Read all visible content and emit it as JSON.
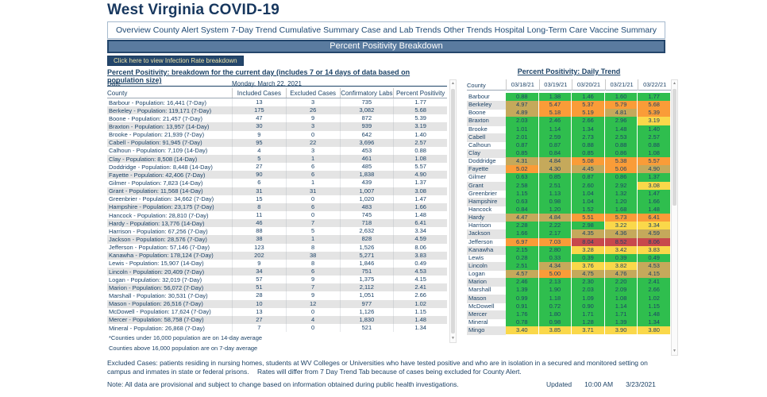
{
  "title": "West Virginia COVID-19",
  "tabs": [
    "Overview",
    "County Alert System",
    "7-Day Trend",
    "Cumulative Summary",
    "Case and Lab Trends",
    "Other Trends",
    "Hospital",
    "Long-Term Care",
    "Vaccine Summary"
  ],
  "banner": "Percent Positivity Breakdown",
  "infection_rate_button": "Click here to view Infection Rate breakdown",
  "icons": {
    "scroll_up": "▲",
    "scroll_down": "▼"
  },
  "breakdown": {
    "subtitle": "Percent Positivity: breakdown for the current day (includes 7 or 14 days of data based on population size)",
    "date_label": "Date",
    "county_label": "County",
    "date_value": "Monday, March 22, 2021",
    "columns": [
      "Included Cases",
      "Excluded Cases",
      "Confirmatory Labs",
      "Percent Positivity"
    ],
    "rows": [
      {
        "county": "Barbour - Population: 16,441 (7-Day)",
        "included": "13",
        "excluded": "3",
        "labs": "735",
        "positivity": "1.77"
      },
      {
        "county": "Berkeley - Population: 119,171 (7-Day)",
        "included": "175",
        "excluded": "26",
        "labs": "3,082",
        "positivity": "5.68"
      },
      {
        "county": "Boone - Population: 21,457 (7-Day)",
        "included": "47",
        "excluded": "9",
        "labs": "872",
        "positivity": "5.39"
      },
      {
        "county": "Braxton - Population: 13,957 (14-Day)",
        "included": "30",
        "excluded": "3",
        "labs": "939",
        "positivity": "3.19"
      },
      {
        "county": "Brooke - Population: 21,939 (7-Day)",
        "included": "9",
        "excluded": "0",
        "labs": "642",
        "positivity": "1.40"
      },
      {
        "county": "Cabell - Population: 91,945 (7-Day)",
        "included": "95",
        "excluded": "22",
        "labs": "3,696",
        "positivity": "2.57"
      },
      {
        "county": "Calhoun - Population: 7,109 (14-Day)",
        "included": "4",
        "excluded": "3",
        "labs": "453",
        "positivity": "0.88"
      },
      {
        "county": "Clay - Population: 8,508 (14-Day)",
        "included": "5",
        "excluded": "1",
        "labs": "461",
        "positivity": "1.08"
      },
      {
        "county": "Doddridge - Population: 8,448 (14-Day)",
        "included": "27",
        "excluded": "6",
        "labs": "485",
        "positivity": "5.57"
      },
      {
        "county": "Fayette - Population: 42,406 (7-Day)",
        "included": "90",
        "excluded": "6",
        "labs": "1,838",
        "positivity": "4.90"
      },
      {
        "county": "Gilmer - Population: 7,823 (14-Day)",
        "included": "6",
        "excluded": "1",
        "labs": "439",
        "positivity": "1.37"
      },
      {
        "county": "Grant - Population: 11,568 (14-Day)",
        "included": "31",
        "excluded": "31",
        "labs": "1,007",
        "positivity": "3.08"
      },
      {
        "county": "Greenbrier - Population: 34,662 (7-Day)",
        "included": "15",
        "excluded": "0",
        "labs": "1,020",
        "positivity": "1.47"
      },
      {
        "county": "Hampshire - Population: 23,175 (7-Day)",
        "included": "8",
        "excluded": "6",
        "labs": "483",
        "positivity": "1.66"
      },
      {
        "county": "Hancock - Population: 28,810 (7-Day)",
        "included": "11",
        "excluded": "0",
        "labs": "745",
        "positivity": "1.48"
      },
      {
        "county": "Hardy - Population: 13,776 (14-Day)",
        "included": "46",
        "excluded": "7",
        "labs": "718",
        "positivity": "6.41"
      },
      {
        "county": "Harrison - Population: 67,256 (7-Day)",
        "included": "88",
        "excluded": "5",
        "labs": "2,632",
        "positivity": "3.34"
      },
      {
        "county": "Jackson - Population: 28,576 (7-Day)",
        "included": "38",
        "excluded": "1",
        "labs": "828",
        "positivity": "4.59"
      },
      {
        "county": "Jefferson - Population: 57,146 (7-Day)",
        "included": "123",
        "excluded": "8",
        "labs": "1,526",
        "positivity": "8.06"
      },
      {
        "county": "Kanawha - Population: 178,124 (7-Day)",
        "included": "202",
        "excluded": "38",
        "labs": "5,271",
        "positivity": "3.83"
      },
      {
        "county": "Lewis - Population: 15,907 (14-Day)",
        "included": "9",
        "excluded": "8",
        "labs": "1,846",
        "positivity": "0.49"
      },
      {
        "county": "Lincoln - Population: 20,409 (7-Day)",
        "included": "34",
        "excluded": "6",
        "labs": "751",
        "positivity": "4.53"
      },
      {
        "county": "Logan - Population: 32,019 (7-Day)",
        "included": "57",
        "excluded": "9",
        "labs": "1,375",
        "positivity": "4.15"
      },
      {
        "county": "Marion - Population: 56,072 (7-Day)",
        "included": "51",
        "excluded": "7",
        "labs": "2,112",
        "positivity": "2.41"
      },
      {
        "county": "Marshall - Population: 30,531 (7-Day)",
        "included": "28",
        "excluded": "9",
        "labs": "1,051",
        "positivity": "2.66"
      },
      {
        "county": "Mason - Population: 26,516 (7-Day)",
        "included": "10",
        "excluded": "12",
        "labs": "977",
        "positivity": "1.02"
      },
      {
        "county": "McDowell - Population: 17,624 (7-Day)",
        "included": "13",
        "excluded": "0",
        "labs": "1,126",
        "positivity": "1.15"
      },
      {
        "county": "Mercer - Population: 58,758 (7-Day)",
        "included": "27",
        "excluded": "4",
        "labs": "1,830",
        "positivity": "1.48"
      },
      {
        "county": "Mineral - Population: 26,868 (7-Day)",
        "included": "7",
        "excluded": "0",
        "labs": "521",
        "positivity": "1.34"
      }
    ],
    "footnotes": [
      "*Counties under 16,000 population are on 14-day average",
      "Counties above 16,000 population are on 7-day average"
    ]
  },
  "daily_trend": {
    "title": "Percent Positivity: Daily Trend",
    "county_label": "County",
    "dates": [
      "03/18/21",
      "03/19/21",
      "03/20/21",
      "03/21/21",
      "03/22/21"
    ],
    "palette": {
      "green": "#2FBE4E",
      "yellow": "#FAD84A",
      "tan": "#C5A95B",
      "orange": "#FA9C38",
      "red": "#C8494C"
    },
    "thresholds": {
      "yellow": 3.0,
      "tan": 4.0,
      "orange": 5.0,
      "red": 8.0
    },
    "rows": [
      {
        "county": "Barbour",
        "values": [
          "0.88",
          "1.38",
          "1.46",
          "1.60",
          "1.77"
        ]
      },
      {
        "county": "Berkeley",
        "values": [
          "4.97",
          "5.47",
          "5.37",
          "5.79",
          "5.68"
        ]
      },
      {
        "county": "Boone",
        "values": [
          "4.89",
          "5.18",
          "5.19",
          "4.81",
          "5.39"
        ]
      },
      {
        "county": "Braxton",
        "values": [
          "2.03",
          "2.46",
          "2.66",
          "2.96",
          "3.19"
        ]
      },
      {
        "county": "Brooke",
        "values": [
          "1.01",
          "1.14",
          "1.34",
          "1.48",
          "1.40"
        ]
      },
      {
        "county": "Cabell",
        "values": [
          "2.01",
          "2.59",
          "2.73",
          "2.53",
          "2.57"
        ]
      },
      {
        "county": "Calhoun",
        "values": [
          "0.87",
          "0.87",
          "0.88",
          "0.88",
          "0.88"
        ]
      },
      {
        "county": "Clay",
        "values": [
          "0.85",
          "0.84",
          "0.85",
          "0.86",
          "1.08"
        ]
      },
      {
        "county": "Doddridge",
        "values": [
          "4.31",
          "4.84",
          "5.08",
          "5.38",
          "5.57"
        ]
      },
      {
        "county": "Fayette",
        "values": [
          "5.02",
          "4.30",
          "4.45",
          "5.06",
          "4.90"
        ]
      },
      {
        "county": "Gilmer",
        "values": [
          "0.63",
          "0.85",
          "0.87",
          "0.86",
          "1.37"
        ]
      },
      {
        "county": "Grant",
        "values": [
          "2.58",
          "2.51",
          "2.60",
          "2.92",
          "3.08"
        ]
      },
      {
        "county": "Greenbrier",
        "values": [
          "1.15",
          "1.13",
          "1.04",
          "1.32",
          "1.47"
        ]
      },
      {
        "county": "Hampshire",
        "values": [
          "0.63",
          "0.98",
          "1.04",
          "1.20",
          "1.66"
        ]
      },
      {
        "county": "Hancock",
        "values": [
          "0.84",
          "1.20",
          "1.52",
          "1.68",
          "1.48"
        ]
      },
      {
        "county": "Hardy",
        "values": [
          "4.47",
          "4.84",
          "5.51",
          "5.73",
          "6.41"
        ]
      },
      {
        "county": "Harrison",
        "values": [
          "2.28",
          "2.22",
          "2.98",
          "3.22",
          "3.34"
        ]
      },
      {
        "county": "Jackson",
        "values": [
          "1.66",
          "2.17",
          "4.35",
          "4.36",
          "4.59"
        ]
      },
      {
        "county": "Jefferson",
        "values": [
          "6.97",
          "7.03",
          "8.04",
          "8.52",
          "8.06"
        ]
      },
      {
        "county": "Kanawha",
        "values": [
          "2.15",
          "2.80",
          "3.28",
          "3.42",
          "3.83"
        ]
      },
      {
        "county": "Lewis",
        "values": [
          "0.28",
          "0.33",
          "0.39",
          "0.39",
          "0.49"
        ]
      },
      {
        "county": "Lincoln",
        "values": [
          "2.51",
          "4.34",
          "3.76",
          "3.82",
          "4.53"
        ]
      },
      {
        "county": "Logan",
        "values": [
          "4.57",
          "5.00",
          "4.75",
          "4.76",
          "4.15"
        ]
      },
      {
        "county": "Marion",
        "values": [
          "2.46",
          "2.13",
          "2.30",
          "2.20",
          "2.41"
        ]
      },
      {
        "county": "Marshall",
        "values": [
          "1.39",
          "1.90",
          "2.03",
          "2.09",
          "2.66"
        ]
      },
      {
        "county": "Mason",
        "values": [
          "0.99",
          "1.18",
          "1.09",
          "1.08",
          "1.02"
        ]
      },
      {
        "county": "McDowell",
        "values": [
          "0.91",
          "0.72",
          "0.90",
          "1.14",
          "1.15"
        ]
      },
      {
        "county": "Mercer",
        "values": [
          "1.76",
          "1.80",
          "1.71",
          "1.71",
          "1.48"
        ]
      },
      {
        "county": "Mineral",
        "values": [
          "0.78",
          "0.98",
          "1.28",
          "1.39",
          "1.34"
        ]
      },
      {
        "county": "Mingo",
        "values": [
          "3.40",
          "3.85",
          "3.71",
          "3.90",
          "3.80"
        ]
      }
    ]
  },
  "notes": {
    "excluded": "Excluded Cases: patients residing in nursing homes, students at WV Colleges or Universities who have tested positive and who are in isolation in a secured and monitored setting on campus and inmates in state or federal prisons.",
    "rates": "Rates will differ from 7 Day Trend Tab because of cases being excluded for County Alert.",
    "provisional": "Note: All data are provisional and subject to change based on information obtained during public health investigations."
  },
  "updated": {
    "label": "Updated",
    "time": "10:00 AM",
    "date": "3/23/2021"
  }
}
